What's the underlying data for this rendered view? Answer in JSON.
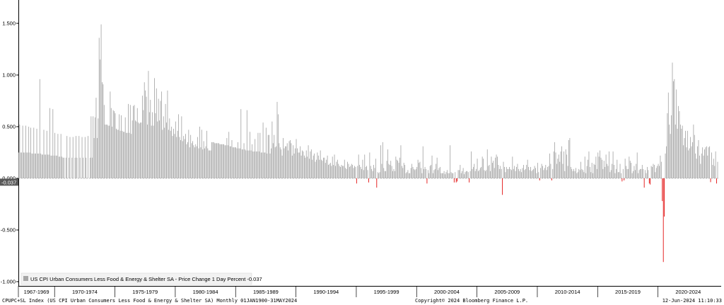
{
  "chart_data": {
    "type": "bar",
    "series": [
      {
        "name": "US CPI Urban Consumers Less Food & Energy & Shelter SA - Price Change 1 Day Percent",
        "last_value": "-0.037",
        "positive_color": "#a6a6a6",
        "negative_color": "#e00000"
      }
    ],
    "period_labels": [
      "1967-1969",
      "1970-1974",
      "1975-1979",
      "1980-1984",
      "1985-1989",
      "1990-1994",
      "1995-1999",
      "2000-2004",
      "2005-2009",
      "2010-2014",
      "2015-2019",
      "2020-2024"
    ],
    "y_ticks": [
      "1.500",
      "1.000",
      "0.500",
      "0.000",
      "-0.500",
      "-1.000"
    ],
    "ylim": [
      -1.0,
      1.65
    ],
    "x_start": "1967-01",
    "x_end": "2024-05",
    "monthly_values": [
      [
        1967,
        [
          0.25,
          0.52,
          0.25,
          0.25,
          0.51,
          0.25,
          0.25,
          0.51,
          0.25,
          0.25,
          0.5,
          0.25
        ]
      ],
      [
        1968,
        [
          0.49,
          0.24,
          0.24,
          0.49,
          0.24,
          0.24,
          0.48,
          0.24,
          0.24,
          0.96,
          0.24,
          0.23
        ]
      ],
      [
        1969,
        [
          0.23,
          0.47,
          0.23,
          0.23,
          0.46,
          0.23,
          0.23,
          0.68,
          0.22,
          0.22,
          0.67,
          0.22
        ]
      ],
      [
        1970,
        [
          0.44,
          0.22,
          0.22,
          0.43,
          0.21,
          0.21,
          0.43,
          0.21,
          0.2,
          0.2,
          0.0,
          0.2
        ]
      ],
      [
        1971,
        [
          0.41,
          0.0,
          0.2,
          0.4,
          0.0,
          0.2,
          0.4,
          0.0,
          0.2,
          0.41,
          0.2,
          0.0
        ]
      ],
      [
        1972,
        [
          0.41,
          0.2,
          0.0,
          0.4,
          0.2,
          0.0,
          0.4,
          0.2,
          0.0,
          0.41,
          0.0,
          0.2
        ]
      ],
      [
        1973,
        [
          0.6,
          0.2,
          0.6,
          0.39,
          0.59,
          0.78,
          0.39,
          0.58,
          1.36,
          1.15,
          1.49,
          0.93
        ]
      ],
      [
        1974,
        [
          0.91,
          0.71,
          0.52,
          0.52,
          0.52,
          0.51,
          0.51,
          0.84,
          0.68,
          0.5,
          0.66,
          0.65
        ]
      ],
      [
        1975,
        [
          0.63,
          0.48,
          0.47,
          0.47,
          0.62,
          0.46,
          0.61,
          0.46,
          0.45,
          0.45,
          0.59,
          0.44
        ]
      ],
      [
        1976,
        [
          0.44,
          0.72,
          0.44,
          0.71,
          0.43,
          0.56,
          0.7,
          0.71,
          0.56,
          0.55,
          0.68,
          0.54
        ]
      ],
      [
        1977,
        [
          0.53,
          0.54,
          0.54,
          0.8,
          0.66,
          0.93,
          0.85,
          0.79,
          0.52,
          1.04,
          0.64,
          0.76
        ]
      ],
      [
        1978,
        [
          0.51,
          0.64,
          0.51,
          0.97,
          0.63,
          0.87,
          0.55,
          0.77,
          0.56,
          0.75,
          0.84,
          0.47
        ]
      ],
      [
        1979,
        [
          0.6,
          0.49,
          0.72,
          0.54,
          0.85,
          0.47,
          0.58,
          0.46,
          0.5,
          0.41,
          0.48,
          0.43
        ]
      ],
      [
        1980,
        [
          0.55,
          0.4,
          0.46,
          0.62,
          0.4,
          0.37,
          0.6,
          0.36,
          0.41,
          0.38,
          0.43,
          0.33
        ]
      ],
      [
        1981,
        [
          0.35,
          0.47,
          0.3,
          0.42,
          0.34,
          0.36,
          0.32,
          0.3,
          0.33,
          0.31,
          0.4,
          0.29
        ]
      ],
      [
        1982,
        [
          0.5,
          0.3,
          0.47,
          0.28,
          0.36,
          0.29,
          0.31,
          0.46,
          0.29,
          0.27,
          0.27,
          0.27
        ]
      ],
      [
        1983,
        [
          0.35,
          0.35,
          0.35,
          0.34,
          0.34,
          0.34,
          0.34,
          0.34,
          0.33,
          0.33,
          0.33,
          0.33
        ]
      ],
      [
        1984,
        [
          0.33,
          0.32,
          0.32,
          0.39,
          0.32,
          0.45,
          0.31,
          0.31,
          0.37,
          0.3,
          0.3,
          0.3
        ]
      ],
      [
        1985,
        [
          0.3,
          0.29,
          0.35,
          0.29,
          0.29,
          0.67,
          0.28,
          0.28,
          0.34,
          0.28,
          0.27,
          0.66
        ]
      ],
      [
        1986,
        [
          0.27,
          0.27,
          0.45,
          0.27,
          0.33,
          0.26,
          0.26,
          0.38,
          0.26,
          0.26,
          0.44,
          0.26
        ]
      ],
      [
        1987,
        [
          0.44,
          0.25,
          0.25,
          0.54,
          0.25,
          0.25,
          0.49,
          0.24,
          0.42,
          0.42,
          0.24,
          0.29
        ]
      ],
      [
        1988,
        [
          0.55,
          0.34,
          0.42,
          0.3,
          0.31,
          0.74,
          0.62,
          0.34,
          0.3,
          0.28,
          0.22,
          0.39
        ]
      ],
      [
        1989,
        [
          0.29,
          0.31,
          0.31,
          0.34,
          0.27,
          0.36,
          0.37,
          0.34,
          0.22,
          0.32,
          0.24,
          0.29
        ]
      ],
      [
        1990,
        [
          0.38,
          0.29,
          0.25,
          0.25,
          0.31,
          0.22,
          0.27,
          0.26,
          0.22,
          0.2,
          0.27,
          0.21
        ]
      ],
      [
        1991,
        [
          0.32,
          0.19,
          0.26,
          0.28,
          0.18,
          0.22,
          0.24,
          0.16,
          0.18,
          0.25,
          0.22,
          0.18
        ]
      ],
      [
        1992,
        [
          0.27,
          0.18,
          0.17,
          0.2,
          0.2,
          0.15,
          0.18,
          0.22,
          0.13,
          0.14,
          0.15,
          0.12
        ]
      ],
      [
        1993,
        [
          0.21,
          0.13,
          0.23,
          0.12,
          0.16,
          0.18,
          0.14,
          0.12,
          0.11,
          0.13,
          0.12,
          0.12
        ]
      ],
      [
        1994,
        [
          0.18,
          0.1,
          0.09,
          0.16,
          0.14,
          0.11,
          0.12,
          0.14,
          0.13,
          0.1,
          0.12,
          0.11
        ]
      ],
      [
        1995,
        [
          -0.05,
          0.12,
          0.23,
          0.13,
          0.11,
          0.09,
          0.18,
          0.08,
          0.23,
          0.11,
          0.12,
          0.08
        ]
      ],
      [
        1996,
        [
          -0.04,
          0.25,
          0.12,
          0.09,
          0.07,
          0.13,
          0.1,
          0.19,
          -0.09,
          0.06,
          0.05,
          0.06
        ]
      ],
      [
        1997,
        [
          0.32,
          0.14,
          0.35,
          0.1,
          0.07,
          0.07,
          0.17,
          0.28,
          0.14,
          0.13,
          0.17,
          0.12
        ]
      ],
      [
        1998,
        [
          0.07,
          0.09,
          0.07,
          0.21,
          0.18,
          0.17,
          0.15,
          0.2,
          0.32,
          0.12,
          0.1,
          0.15
        ]
      ],
      [
        1999,
        [
          0.13,
          0.05,
          0.06,
          0.08,
          0.05,
          0.05,
          0.1,
          0.14,
          0.11,
          0.09,
          0.08,
          0.09
        ]
      ],
      [
        2000,
        [
          0.11,
          0.18,
          0.15,
          0.16,
          0.1,
          0.05,
          0.31,
          0.09,
          0.11,
          0.09,
          -0.05,
          0.08
        ]
      ],
      [
        2001,
        [
          0.05,
          0.12,
          0.13,
          0.22,
          0.05,
          0.08,
          0.09,
          0.14,
          0.2,
          0.08,
          0.1,
          0.11
        ]
      ],
      [
        2002,
        [
          0.05,
          0.05,
          0.05,
          0.07,
          0.04,
          0.06,
          0.08,
          0.05,
          0.05,
          0.32,
          0.06,
          0.05
        ]
      ],
      [
        2003,
        [
          0.05,
          -0.04,
          0.06,
          -0.04,
          -0.03,
          0.08,
          0.08,
          0.13,
          0.05,
          0.07,
          0.1,
          0.04
        ]
      ],
      [
        2004,
        [
          0.06,
          0.07,
          0.07,
          0.06,
          -0.04,
          0.07,
          0.26,
          0.09,
          0.11,
          0.14,
          0.07,
          0.09
        ]
      ],
      [
        2005,
        [
          0.19,
          0.07,
          0.08,
          0.1,
          0.11,
          0.21,
          0.19,
          0.08,
          0.07,
          0.08,
          0.28,
          0.12
        ]
      ],
      [
        2006,
        [
          0.13,
          0.07,
          0.21,
          0.15,
          0.17,
          0.1,
          0.2,
          0.23,
          0.21,
          0.13,
          0.09,
          0.12
        ]
      ],
      [
        2007,
        [
          0.09,
          -0.16,
          0.16,
          0.11,
          0.06,
          0.11,
          0.09,
          0.09,
          0.11,
          0.09,
          0.08,
          0.21
        ]
      ],
      [
        2008,
        [
          0.09,
          0.12,
          0.07,
          0.11,
          0.14,
          0.09,
          0.07,
          0.09,
          0.06,
          0.1,
          0.13,
          0.08
        ]
      ],
      [
        2009,
        [
          0.09,
          0.13,
          0.18,
          0.11,
          0.08,
          0.11,
          0.07,
          0.08,
          0.09,
          0.12,
          0.1,
          0.05
        ]
      ],
      [
        2010,
        [
          0.15,
          0.06,
          -0.02,
          0.1,
          0.14,
          0.12,
          0.08,
          0.1,
          0.13,
          0.08,
          0.11,
          0.12
        ]
      ],
      [
        2011,
        [
          0.24,
          0.14,
          -0.02,
          0.09,
          0.26,
          0.35,
          0.25,
          0.14,
          0.19,
          0.23,
          0.16,
          0.26
        ]
      ],
      [
        2012,
        [
          0.31,
          0.14,
          0.26,
          0.07,
          0.28,
          0.23,
          0.12,
          0.37,
          0.39,
          0.11,
          0.09,
          0.07
        ]
      ],
      [
        2013,
        [
          0.09,
          0.07,
          0.1,
          0.05,
          0.06,
          0.09,
          0.08,
          0.16,
          0.09,
          0.08,
          0.06,
          0.21
        ]
      ],
      [
        2014,
        [
          0.05,
          0.12,
          0.18,
          0.26,
          0.11,
          0.06,
          0.15,
          0.05,
          0.14,
          0.13,
          0.21,
          0.09
        ]
      ],
      [
        2015,
        [
          0.25,
          0.21,
          0.27,
          0.2,
          0.18,
          0.09,
          0.17,
          0.11,
          0.23,
          0.14,
          0.12,
          0.26
        ]
      ],
      [
        2016,
        [
          0.06,
          0.08,
          0.14,
          0.26,
          0.13,
          0.05,
          0.09,
          0.18,
          0.06,
          0.06,
          0.14,
          0.05
        ]
      ],
      [
        2017,
        [
          -0.03,
          0.09,
          -0.02,
          0.19,
          0.12,
          0.09,
          0.09,
          0.21,
          0.17,
          0.15,
          0.05,
          0.07
        ]
      ],
      [
        2018,
        [
          0.12,
          0.08,
          0.14,
          0.25,
          0.05,
          0.08,
          0.09,
          0.09,
          0.13,
          0.09,
          -0.09,
          0.08
        ]
      ],
      [
        2019,
        [
          0.05,
          0.11,
          0.08,
          -0.05,
          -0.06,
          0.12,
          0.11,
          0.14,
          0.13,
          0.06,
          0.1,
          0.12
        ]
      ],
      [
        2020,
        [
          0.14,
          0.12,
          0.22,
          0.16,
          0.12,
          0.05,
          0.06,
          0.09,
          0.14,
          0.09,
          0.2,
          0.09
        ]
      ],
      [
        2021,
        [
          0.14,
          0.06,
          0.13,
          0.04,
          0.1,
          -0.06,
          0.12,
          0.15,
          0.05,
          0.06,
          0.11,
          0.21
        ]
      ],
      [
        2022,
        [
          0.08,
          0.2,
          -0.03,
          -0.15,
          0.19,
          0.11,
          0.12,
          0.08,
          0.04,
          0.16,
          0.1,
          0.08
        ]
      ],
      [
        2023,
        [
          0.04,
          0.05,
          0.27,
          -0.03,
          0.2,
          0.06,
          0.02,
          0.38,
          0.15,
          0.03,
          0.05,
          0.04
        ]
      ],
      [
        2024,
        [
          0.02,
          0.15,
          0.05,
          0.1,
          -0.07,
          0.25,
          0.13,
          0.19,
          0.12,
          0.26,
          -0.05,
          0.16
        ]
      ]
    ],
    "override_values": [
      [
        2020,
        4,
        -0.22
      ],
      [
        2020,
        5,
        -0.81
      ],
      [
        2020,
        6,
        -0.37
      ],
      [
        2020,
        7,
        0.24
      ],
      [
        2020,
        8,
        0.31
      ],
      [
        2020,
        9,
        0.63
      ],
      [
        2020,
        10,
        0.83
      ],
      [
        2020,
        11,
        0.52
      ],
      [
        2021,
        0,
        0.43
      ],
      [
        2021,
        1,
        0.61
      ],
      [
        2021,
        2,
        1.12
      ],
      [
        2021,
        3,
        0.94
      ],
      [
        2021,
        4,
        0.96
      ],
      [
        2021,
        5,
        0.52
      ],
      [
        2021,
        6,
        0.86
      ],
      [
        2021,
        7,
        0.48
      ],
      [
        2021,
        8,
        0.7
      ],
      [
        2021,
        9,
        0.65
      ],
      [
        2021,
        10,
        0.52
      ],
      [
        2021,
        11,
        0.48
      ],
      [
        2022,
        0,
        0.51
      ],
      [
        2022,
        1,
        0.32
      ],
      [
        2022,
        2,
        0.39
      ],
      [
        2022,
        3,
        0.46
      ],
      [
        2022,
        4,
        0.3
      ],
      [
        2022,
        5,
        0.46
      ],
      [
        2022,
        6,
        0.27
      ],
      [
        2022,
        7,
        0.29
      ],
      [
        2022,
        8,
        0.4
      ],
      [
        2022,
        9,
        0.31
      ],
      [
        2022,
        10,
        0.35
      ],
      [
        2022,
        11,
        0.52
      ],
      [
        2023,
        0,
        0.42
      ],
      [
        2023,
        1,
        0.24
      ],
      [
        2023,
        2,
        0.19
      ],
      [
        2023,
        3,
        0.31
      ],
      [
        2023,
        4,
        0.37
      ],
      [
        2023,
        5,
        0.22
      ],
      [
        2023,
        6,
        0.14
      ],
      [
        2023,
        7,
        0.24
      ],
      [
        2023,
        8,
        0.3
      ],
      [
        2023,
        9,
        0.22
      ],
      [
        2023,
        10,
        0.28
      ],
      [
        2023,
        11,
        0.3
      ],
      [
        2024,
        0,
        0.31
      ],
      [
        2024,
        1,
        0.22
      ],
      [
        2024,
        2,
        0.3
      ],
      [
        2024,
        3,
        0.31
      ],
      [
        2024,
        4,
        -0.037
      ]
    ],
    "last_value_label": "-0.037",
    "legend_text": "US CPI Urban Consumers Less Food & Energy & Shelter SA - Price Change 1 Day Percent -0.037",
    "legend_placement": "bottom-left"
  },
  "footer": {
    "left": "CPUPC+SL Index (US CPI Urban Consumers Less Food & Energy & Shelter SA) Monthly 01JAN1900-31MAY2024",
    "middle": "Copyright© 2024 Bloomberg Finance L.P.",
    "right": "12-Jun-2024 11:10:33"
  }
}
